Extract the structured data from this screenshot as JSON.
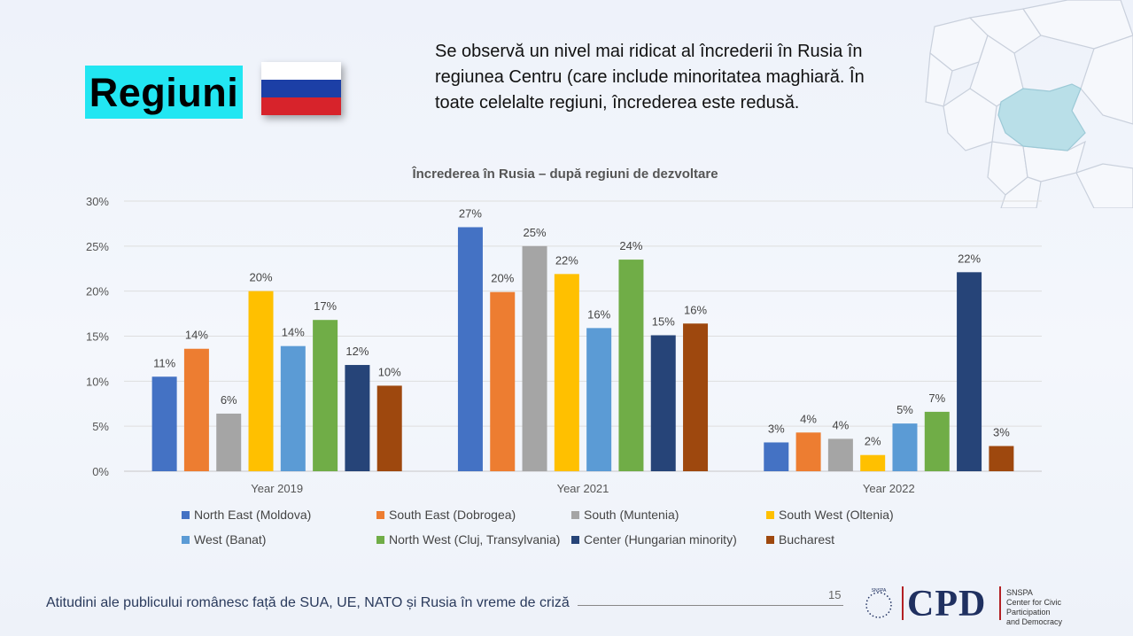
{
  "heading": "Regiuni",
  "intro_text": "Se observă un nivel mai ridicat al încrederii în Rusia în regiunea Centru (care include minoritatea maghiară. În toate celelalte regiuni, încrederea este redusă.",
  "colors": {
    "heading_bg": "#22e6f2",
    "flag_white": "#ffffff",
    "flag_blue": "#1c3fa6",
    "flag_red": "#d7232b",
    "map_highlight": "#b9dfe8"
  },
  "chart_data": {
    "type": "bar",
    "title": "Încrederea în Rusia – după regiuni de dezvoltare",
    "categories": [
      "Year 2019",
      "Year 2021",
      "Year 2022"
    ],
    "y_ticks": [
      "0%",
      "5%",
      "10%",
      "15%",
      "20%",
      "25%",
      "30%"
    ],
    "ylim": [
      0,
      30
    ],
    "grid": true,
    "legend_position": "bottom",
    "series": [
      {
        "name": "North East (Moldova)",
        "color": "#4472c4",
        "values": [
          10.5,
          27.1,
          3.2
        ],
        "labels": [
          "11%",
          "27%",
          "3%"
        ]
      },
      {
        "name": "South East (Dobrogea)",
        "color": "#ed7d31",
        "values": [
          13.6,
          19.9,
          4.3
        ],
        "labels": [
          "14%",
          "20%",
          "4%"
        ]
      },
      {
        "name": "South (Muntenia)",
        "color": "#a5a5a5",
        "values": [
          6.4,
          25.0,
          3.6
        ],
        "labels": [
          "6%",
          "25%",
          "4%"
        ]
      },
      {
        "name": "South West (Oltenia)",
        "color": "#ffc000",
        "values": [
          20.0,
          21.9,
          1.8
        ],
        "labels": [
          "20%",
          "22%",
          "2%"
        ]
      },
      {
        "name": "West (Banat)",
        "color": "#5b9bd5",
        "values": [
          13.9,
          15.9,
          5.3
        ],
        "labels": [
          "14%",
          "16%",
          "5%"
        ]
      },
      {
        "name": "North West (Cluj, Transylvania)",
        "color": "#70ad47",
        "values": [
          16.8,
          23.5,
          6.6
        ],
        "labels": [
          "17%",
          "24%",
          "7%"
        ]
      },
      {
        "name": "Center (Hungarian minority)",
        "color": "#264478",
        "values": [
          11.8,
          15.1,
          22.1
        ],
        "labels": [
          "12%",
          "15%",
          "22%"
        ]
      },
      {
        "name": "Bucharest",
        "color": "#9e480e",
        "values": [
          9.5,
          16.4,
          2.8
        ],
        "labels": [
          "10%",
          "16%",
          "3%"
        ]
      }
    ]
  },
  "footer": {
    "text": "Atitudini ale publicului românesc față de SUA, UE, NATO și Rusia în vreme de criză",
    "page_number": "15",
    "logo_text": "CPD",
    "logo_seal_text": "SNSPA",
    "logo_subtitle": [
      "SNSPA",
      "Center for Civic Participation",
      "and Democracy"
    ]
  }
}
